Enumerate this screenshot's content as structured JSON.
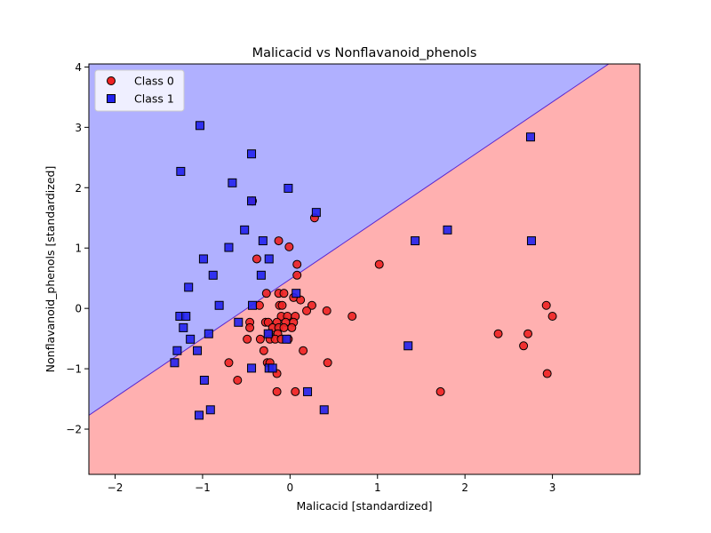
{
  "chart_data": {
    "type": "scatter",
    "title": "Malicacid vs Nonflavanoid_phenols",
    "xlabel": "Malicacid [standardized]",
    "ylabel": "Nonflavanoid_phenols [standardized]",
    "xlim": [
      -2.3,
      4.0
    ],
    "ylim": [
      -2.75,
      4.05
    ],
    "xticks": [
      -2,
      -1,
      0,
      1,
      2,
      3
    ],
    "yticks": [
      -2,
      -1,
      0,
      1,
      2,
      3,
      4
    ],
    "xtick_labels": [
      "−2",
      "−1",
      "0",
      "1",
      "2",
      "3"
    ],
    "ytick_labels": [
      "−2",
      "−1",
      "0",
      "1",
      "2",
      "3",
      "4"
    ],
    "grid": false,
    "legend": "top-left",
    "decision_boundary": {
      "points": [
        [
          -2.3,
          -1.77
        ],
        [
          4.0,
          4.4
        ]
      ],
      "region_above_color": "#b0b0ff",
      "region_below_color": "#ffb0b0",
      "boundary_color": "#5a28d0"
    },
    "series": [
      {
        "name": "Class 0",
        "marker": "circle",
        "color": "#ee2222",
        "points": [
          [
            -0.43,
            1.78
          ],
          [
            0.28,
            1.5
          ],
          [
            -0.13,
            1.12
          ],
          [
            -0.01,
            1.02
          ],
          [
            -0.38,
            0.82
          ],
          [
            0.08,
            0.73
          ],
          [
            1.02,
            0.73
          ],
          [
            0.08,
            0.55
          ],
          [
            -0.27,
            0.25
          ],
          [
            -0.13,
            0.25
          ],
          [
            -0.07,
            0.25
          ],
          [
            0.04,
            0.18
          ],
          [
            0.12,
            0.14
          ],
          [
            -0.35,
            0.05
          ],
          [
            -0.12,
            0.05
          ],
          [
            -0.09,
            0.05
          ],
          [
            0.25,
            0.05
          ],
          [
            0.19,
            -0.04
          ],
          [
            0.42,
            -0.04
          ],
          [
            0.71,
            -0.13
          ],
          [
            -0.1,
            -0.13
          ],
          [
            -0.03,
            -0.13
          ],
          [
            0.06,
            -0.13
          ],
          [
            -0.46,
            -0.23
          ],
          [
            -0.28,
            -0.23
          ],
          [
            -0.25,
            -0.23
          ],
          [
            -0.15,
            -0.23
          ],
          [
            -0.05,
            -0.23
          ],
          [
            0.04,
            -0.23
          ],
          [
            -0.46,
            -0.32
          ],
          [
            -0.2,
            -0.32
          ],
          [
            -0.13,
            -0.32
          ],
          [
            -0.07,
            -0.32
          ],
          [
            0.02,
            -0.32
          ],
          [
            -0.24,
            -0.42
          ],
          [
            -0.14,
            -0.42
          ],
          [
            -0.49,
            -0.51
          ],
          [
            -0.34,
            -0.51
          ],
          [
            -0.23,
            -0.51
          ],
          [
            -0.17,
            -0.51
          ],
          [
            -0.1,
            -0.51
          ],
          [
            -0.02,
            -0.51
          ],
          [
            -0.3,
            -0.7
          ],
          [
            0.15,
            -0.7
          ],
          [
            -0.26,
            -0.9
          ],
          [
            -0.23,
            -0.9
          ],
          [
            -0.7,
            -0.9
          ],
          [
            0.43,
            -0.9
          ],
          [
            -0.15,
            -1.08
          ],
          [
            -0.6,
            -1.19
          ],
          [
            -0.15,
            -1.38
          ],
          [
            0.06,
            -1.38
          ],
          [
            1.72,
            -1.38
          ],
          [
            2.38,
            -0.42
          ],
          [
            2.72,
            -0.42
          ],
          [
            2.67,
            -0.62
          ],
          [
            2.93,
            0.05
          ],
          [
            3.0,
            -0.13
          ],
          [
            2.94,
            -1.08
          ]
        ]
      },
      {
        "name": "Class 1",
        "marker": "square",
        "color": "#2222ee",
        "points": [
          [
            -1.03,
            3.03
          ],
          [
            -0.44,
            2.56
          ],
          [
            -1.25,
            2.27
          ],
          [
            -0.66,
            2.08
          ],
          [
            -0.02,
            1.99
          ],
          [
            -0.44,
            1.78
          ],
          [
            0.3,
            1.59
          ],
          [
            -0.52,
            1.3
          ],
          [
            -0.7,
            1.01
          ],
          [
            -0.31,
            1.12
          ],
          [
            1.43,
            1.12
          ],
          [
            1.8,
            1.3
          ],
          [
            2.76,
            1.12
          ],
          [
            2.75,
            2.84
          ],
          [
            -0.99,
            0.82
          ],
          [
            -0.24,
            0.82
          ],
          [
            -0.33,
            0.55
          ],
          [
            -0.88,
            0.55
          ],
          [
            -1.16,
            0.35
          ],
          [
            0.07,
            0.25
          ],
          [
            -0.81,
            0.05
          ],
          [
            -0.43,
            0.05
          ],
          [
            -1.26,
            -0.13
          ],
          [
            -1.19,
            -0.13
          ],
          [
            -0.59,
            -0.23
          ],
          [
            -1.22,
            -0.32
          ],
          [
            -0.25,
            -0.42
          ],
          [
            -0.93,
            -0.42
          ],
          [
            -1.14,
            -0.51
          ],
          [
            -0.04,
            -0.51
          ],
          [
            -1.29,
            -0.7
          ],
          [
            -1.06,
            -0.7
          ],
          [
            1.35,
            -0.62
          ],
          [
            -1.32,
            -0.9
          ],
          [
            -0.44,
            -0.99
          ],
          [
            -0.24,
            -0.99
          ],
          [
            -0.2,
            -0.99
          ],
          [
            -0.98,
            -1.19
          ],
          [
            0.2,
            -1.38
          ],
          [
            -0.91,
            -1.68
          ],
          [
            -1.04,
            -1.77
          ],
          [
            0.39,
            -1.68
          ]
        ]
      }
    ]
  }
}
